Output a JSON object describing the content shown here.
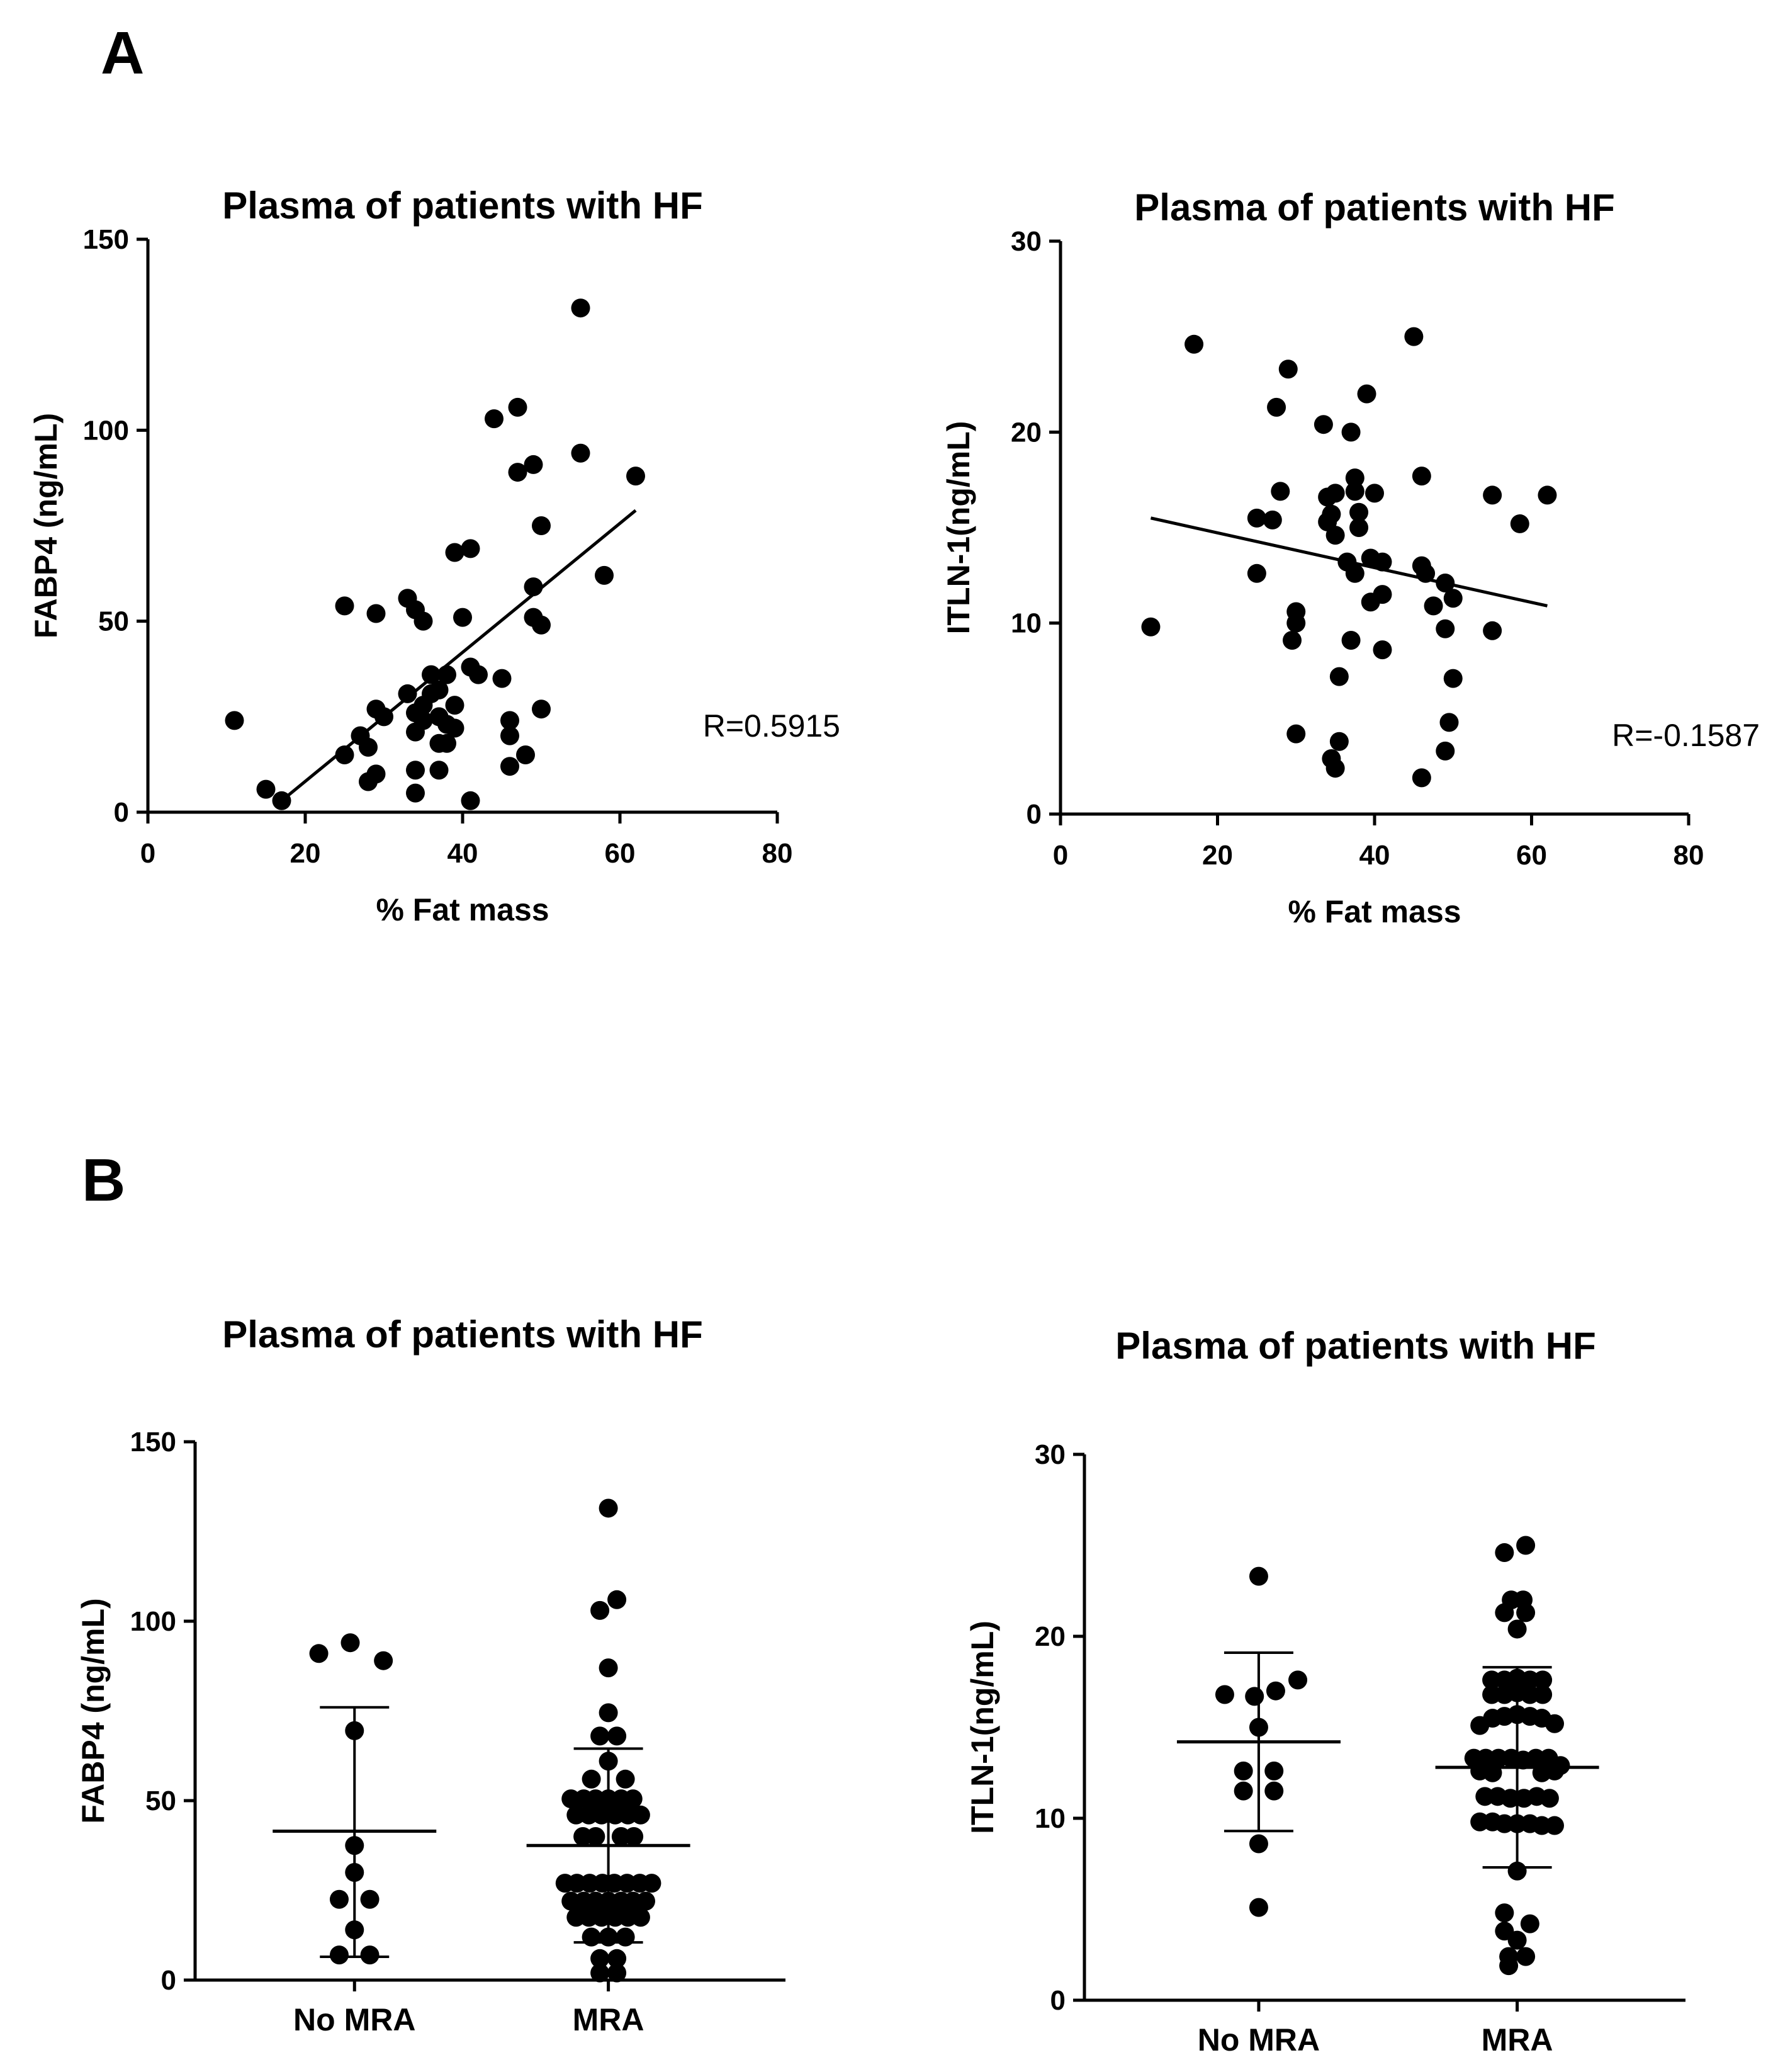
{
  "panels": {
    "A": "A",
    "B": "B"
  },
  "charts": [
    {
      "id": "a1",
      "chart_data": {
        "type": "scatter",
        "title": "Plasma of patients with HF",
        "xlabel": "% Fat mass",
        "ylabel": "FABP4 (ng/mL)",
        "xlim": [
          0,
          80
        ],
        "ylim": [
          0,
          150
        ],
        "xticks": [
          0,
          20,
          40,
          60,
          80
        ],
        "yticks": [
          0,
          50,
          100,
          150
        ],
        "annotation": "R=0.5915",
        "fit_line": {
          "x": [
            17,
            62
          ],
          "y": [
            3,
            79
          ]
        },
        "points": [
          [
            11,
            24
          ],
          [
            15,
            6
          ],
          [
            17,
            3
          ],
          [
            25,
            54
          ],
          [
            25,
            15
          ],
          [
            27,
            20
          ],
          [
            28,
            17
          ],
          [
            28,
            8
          ],
          [
            29,
            10
          ],
          [
            29,
            27
          ],
          [
            29,
            52
          ],
          [
            30,
            25
          ],
          [
            33,
            56
          ],
          [
            34,
            53
          ],
          [
            33,
            31
          ],
          [
            34,
            26
          ],
          [
            34,
            21
          ],
          [
            34,
            11
          ],
          [
            34,
            5
          ],
          [
            35,
            28
          ],
          [
            35,
            24
          ],
          [
            35,
            50
          ],
          [
            36,
            36
          ],
          [
            36,
            31
          ],
          [
            37,
            32
          ],
          [
            37,
            25
          ],
          [
            37,
            18
          ],
          [
            37,
            11
          ],
          [
            38,
            36
          ],
          [
            38,
            23
          ],
          [
            38,
            18
          ],
          [
            39,
            22
          ],
          [
            39,
            28
          ],
          [
            39,
            68
          ],
          [
            40,
            51
          ],
          [
            41,
            69
          ],
          [
            41,
            3
          ],
          [
            41,
            38
          ],
          [
            42,
            36
          ],
          [
            44,
            103
          ],
          [
            45,
            35
          ],
          [
            46,
            24
          ],
          [
            46,
            20
          ],
          [
            46,
            12
          ],
          [
            47,
            89
          ],
          [
            47,
            106
          ],
          [
            48,
            15
          ],
          [
            49,
            59
          ],
          [
            49,
            91
          ],
          [
            49,
            51
          ],
          [
            50,
            27
          ],
          [
            50,
            49
          ],
          [
            50,
            75
          ],
          [
            55,
            132
          ],
          [
            55,
            94
          ],
          [
            58,
            62
          ],
          [
            62,
            88
          ]
        ]
      }
    },
    {
      "id": "a2",
      "chart_data": {
        "type": "scatter",
        "title": "Plasma of patients with HF",
        "xlabel": "% Fat mass",
        "ylabel": "ITLN-1(ng/mL)",
        "xlim": [
          0,
          80
        ],
        "ylim": [
          0,
          30
        ],
        "xticks": [
          0,
          20,
          40,
          60,
          80
        ],
        "yticks": [
          0,
          10,
          20,
          30
        ],
        "annotation": "R=-0.1587",
        "fit_line": {
          "x": [
            11.5,
            62
          ],
          "y": [
            15.5,
            10.9
          ]
        },
        "points": [
          [
            11.5,
            9.8
          ],
          [
            17,
            24.6
          ],
          [
            25,
            12.6
          ],
          [
            25,
            15.5
          ],
          [
            27,
            15.4
          ],
          [
            27.5,
            21.3
          ],
          [
            28,
            16.9
          ],
          [
            29,
            23.3
          ],
          [
            29.5,
            9.1
          ],
          [
            30,
            10
          ],
          [
            30,
            10.6
          ],
          [
            30,
            4.2
          ],
          [
            33.5,
            20.4
          ],
          [
            34,
            16.6
          ],
          [
            34,
            15.3
          ],
          [
            34.5,
            15.7
          ],
          [
            34.5,
            2.9
          ],
          [
            35,
            16.8
          ],
          [
            35,
            14.6
          ],
          [
            35,
            2.4
          ],
          [
            35.5,
            3.8
          ],
          [
            35.5,
            7.2
          ],
          [
            36.5,
            13.2
          ],
          [
            37,
            20
          ],
          [
            37,
            9.1
          ],
          [
            37.5,
            12.6
          ],
          [
            37.5,
            16.9
          ],
          [
            37.5,
            17.6
          ],
          [
            38,
            15.8
          ],
          [
            38,
            15
          ],
          [
            39,
            22
          ],
          [
            39.5,
            11.1
          ],
          [
            39.5,
            13.4
          ],
          [
            40,
            16.8
          ],
          [
            41,
            11.5
          ],
          [
            41,
            13.2
          ],
          [
            41,
            8.6
          ],
          [
            45,
            25
          ],
          [
            46,
            17.7
          ],
          [
            46,
            13
          ],
          [
            46,
            1.9
          ],
          [
            46.5,
            12.6
          ],
          [
            47.5,
            10.9
          ],
          [
            49,
            12.1
          ],
          [
            49,
            9.7
          ],
          [
            49,
            3.3
          ],
          [
            49.5,
            4.8
          ],
          [
            50,
            11.3
          ],
          [
            50,
            7.1
          ],
          [
            55,
            16.7
          ],
          [
            55,
            9.6
          ],
          [
            58.5,
            15.2
          ],
          [
            62,
            16.7
          ]
        ]
      }
    },
    {
      "id": "b1",
      "chart_data": {
        "type": "scatter",
        "title": "Plasma of patients with HF",
        "xlabel": "",
        "ylabel": "FABP4 (ng/mL)",
        "categories": [
          "No  MRA",
          "MRA"
        ],
        "ylim": [
          0,
          150
        ],
        "yticks": [
          0,
          50,
          100,
          150
        ],
        "summary": [
          {
            "category": "No  MRA",
            "mean": 41.5,
            "sd_low": 6.5,
            "sd_high": 76
          },
          {
            "category": "MRA",
            "mean": 37.5,
            "sd_low": 10.5,
            "sd_high": 64.5
          }
        ],
        "series": [
          {
            "category": "No  MRA",
            "points": [
              [
                -0.42,
                91
              ],
              [
                -0.05,
                94
              ],
              [
                0.34,
                89
              ],
              [
                0,
                69.5
              ],
              [
                0,
                37.5
              ],
              [
                0,
                30
              ],
              [
                -0.18,
                22.5
              ],
              [
                0.18,
                22.5
              ],
              [
                0,
                14
              ],
              [
                -0.18,
                7
              ],
              [
                0.18,
                7
              ]
            ]
          },
          {
            "category": "MRA",
            "points": [
              [
                0,
                131.5
              ],
              [
                -0.1,
                103
              ],
              [
                0.1,
                106
              ],
              [
                0,
                87
              ],
              [
                0,
                74.5
              ],
              [
                -0.1,
                68
              ],
              [
                0.1,
                68
              ],
              [
                0,
                61
              ],
              [
                -0.44,
                50.5
              ],
              [
                -0.29,
                50.5
              ],
              [
                -0.15,
                50.5
              ],
              [
                0,
                50.5
              ],
              [
                0.15,
                50.5
              ],
              [
                0.29,
                50.5
              ],
              [
                -0.2,
                56
              ],
              [
                0.2,
                56
              ],
              [
                -0.38,
                46
              ],
              [
                -0.23,
                46
              ],
              [
                -0.08,
                46
              ],
              [
                0.08,
                46
              ],
              [
                0.23,
                46
              ],
              [
                0.38,
                46
              ],
              [
                -0.3,
                40
              ],
              [
                -0.15,
                40
              ],
              [
                0.15,
                40
              ],
              [
                0.3,
                40
              ],
              [
                -0.51,
                27
              ],
              [
                -0.37,
                27
              ],
              [
                -0.22,
                27
              ],
              [
                -0.07,
                27
              ],
              [
                0.07,
                27
              ],
              [
                0.22,
                27
              ],
              [
                0.37,
                27
              ],
              [
                0.51,
                27
              ],
              [
                -0.44,
                22
              ],
              [
                -0.29,
                22
              ],
              [
                -0.15,
                22
              ],
              [
                0,
                22
              ],
              [
                0.15,
                22
              ],
              [
                0.29,
                22
              ],
              [
                0.44,
                22
              ],
              [
                -0.38,
                17.5
              ],
              [
                -0.23,
                17.5
              ],
              [
                -0.08,
                17.5
              ],
              [
                0.08,
                17.5
              ],
              [
                0.23,
                17.5
              ],
              [
                0.38,
                17.5
              ],
              [
                -0.2,
                12
              ],
              [
                0,
                12
              ],
              [
                0.2,
                12
              ],
              [
                -0.1,
                6
              ],
              [
                0.1,
                6
              ],
              [
                -0.1,
                2
              ],
              [
                0.1,
                2
              ]
            ]
          }
        ]
      }
    },
    {
      "id": "b2",
      "chart_data": {
        "type": "scatter",
        "title": "Plasma of patients with HF",
        "xlabel": "",
        "ylabel": "ITLN-1(ng/mL)",
        "categories": [
          "No  MRA",
          "MRA"
        ],
        "ylim": [
          0,
          30
        ],
        "yticks": [
          0,
          10,
          20,
          30
        ],
        "summary": [
          {
            "category": "No  MRA",
            "mean": 14.2,
            "sd_low": 9.3,
            "sd_high": 19.1
          },
          {
            "category": "MRA",
            "mean": 12.8,
            "sd_low": 7.3,
            "sd_high": 18.3
          }
        ],
        "series": [
          {
            "category": "No  MRA",
            "points": [
              [
                0,
                23.3
              ],
              [
                -0.4,
                16.8
              ],
              [
                -0.05,
                16.7
              ],
              [
                0.2,
                17
              ],
              [
                0.46,
                17.6
              ],
              [
                0,
                15
              ],
              [
                -0.18,
                12.6
              ],
              [
                0.18,
                12.6
              ],
              [
                -0.18,
                11.5
              ],
              [
                0.18,
                11.5
              ],
              [
                0,
                8.6
              ],
              [
                0,
                5.1
              ]
            ]
          },
          {
            "category": "MRA",
            "points": [
              [
                -0.15,
                24.6
              ],
              [
                0.1,
                25
              ],
              [
                -0.07,
                22
              ],
              [
                0.07,
                22
              ],
              [
                -0.15,
                21.3
              ],
              [
                0.1,
                21.3
              ],
              [
                0,
                20.4
              ],
              [
                -0.3,
                17.6
              ],
              [
                -0.15,
                17.6
              ],
              [
                0,
                17.7
              ],
              [
                0.15,
                17.6
              ],
              [
                0.3,
                17.6
              ],
              [
                -0.3,
                16.8
              ],
              [
                -0.15,
                16.8
              ],
              [
                0,
                16.9
              ],
              [
                0.15,
                16.8
              ],
              [
                0.3,
                16.8
              ],
              [
                -0.44,
                15.1
              ],
              [
                -0.29,
                15.5
              ],
              [
                -0.15,
                15.6
              ],
              [
                0,
                15.7
              ],
              [
                0.15,
                15.6
              ],
              [
                0.29,
                15.5
              ],
              [
                0.44,
                15.2
              ],
              [
                -0.51,
                13.3
              ],
              [
                -0.37,
                13.3
              ],
              [
                -0.22,
                13.3
              ],
              [
                -0.07,
                13.3
              ],
              [
                0.07,
                13.2
              ],
              [
                0.22,
                13.3
              ],
              [
                0.37,
                13.3
              ],
              [
                0.51,
                12.9
              ],
              [
                -0.44,
                12.6
              ],
              [
                -0.29,
                12.5
              ],
              [
                0.29,
                12.5
              ],
              [
                0.44,
                12.6
              ],
              [
                -0.38,
                11.2
              ],
              [
                -0.23,
                11.2
              ],
              [
                -0.08,
                11.1
              ],
              [
                0.08,
                11.1
              ],
              [
                0.23,
                11.2
              ],
              [
                0.38,
                11.1
              ],
              [
                -0.44,
                9.8
              ],
              [
                -0.29,
                9.8
              ],
              [
                -0.15,
                9.7
              ],
              [
                0,
                9.7
              ],
              [
                0.15,
                9.7
              ],
              [
                0.29,
                9.6
              ],
              [
                0.44,
                9.6
              ],
              [
                0,
                7.1
              ],
              [
                -0.15,
                4.8
              ],
              [
                0.15,
                4.2
              ],
              [
                -0.15,
                3.8
              ],
              [
                0,
                3.3
              ],
              [
                -0.1,
                2.4
              ],
              [
                0.1,
                2.4
              ],
              [
                -0.1,
                1.9
              ]
            ]
          }
        ]
      }
    }
  ]
}
